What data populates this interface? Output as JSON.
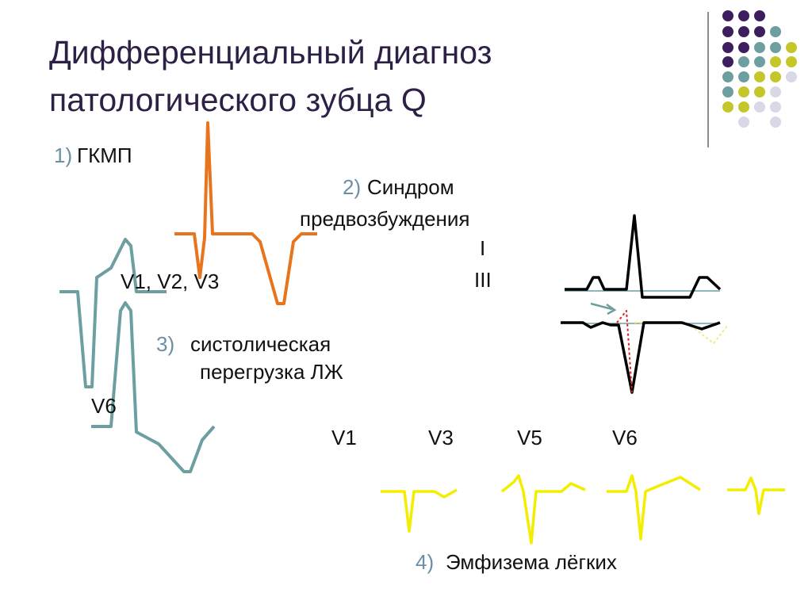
{
  "header": {
    "title": [
      "Дифференциальный диагноз",
      "патологического зубца Q"
    ]
  },
  "items": [
    {
      "number": "1)",
      "text": [
        "ГКМП"
      ]
    },
    {
      "number": "2)",
      "text": [
        "Синдром",
        "предвозбуждения"
      ]
    },
    {
      "number": "3)",
      "text": [
        "систолическая",
        "перегрузка ЛЖ"
      ]
    },
    {
      "number": "4)",
      "text": [
        "Эмфизема лёгких"
      ]
    }
  ],
  "labels": {
    "hcm": "V1, V2, V3",
    "lvh": "V6",
    "wpw": [
      "I",
      "III"
    ],
    "emphysema": [
      "V1",
      "V3",
      "V5",
      "V6"
    ]
  }
}
